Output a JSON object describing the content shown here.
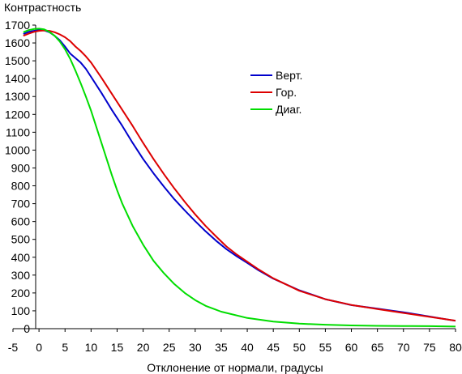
{
  "chart_data": {
    "type": "line",
    "title": "",
    "ylabel": "Контрастность",
    "xlabel": "Отклонение от нормали, градусы",
    "xlim": [
      -5,
      80
    ],
    "ylim": [
      0,
      1700
    ],
    "xticks": [
      "-5",
      "0",
      "5",
      "10",
      "15",
      "20",
      "25",
      "30",
      "35",
      "40",
      "45",
      "50",
      "55",
      "60",
      "65",
      "70",
      "75",
      "80"
    ],
    "yticks": [
      "0",
      "100",
      "200",
      "300",
      "400",
      "500",
      "600",
      "700",
      "800",
      "900",
      "1000",
      "1100",
      "1200",
      "1300",
      "1400",
      "1500",
      "1600",
      "1700"
    ],
    "grid": false,
    "legend_position": "upper-right (inside plot)",
    "series": [
      {
        "name": "Верт.",
        "color": "#0000cc",
        "x": [
          -3,
          -2,
          -1,
          0,
          1,
          2,
          3,
          4,
          5,
          6,
          7,
          8,
          9,
          10,
          12,
          14,
          16,
          18,
          20,
          22,
          24,
          26,
          28,
          30,
          32,
          34,
          36,
          38,
          40,
          42,
          45,
          50,
          55,
          60,
          65,
          70,
          75,
          80
        ],
        "y": [
          1650,
          1662,
          1668,
          1672,
          1670,
          1660,
          1640,
          1615,
          1580,
          1540,
          1515,
          1490,
          1455,
          1410,
          1320,
          1225,
          1135,
          1040,
          950,
          870,
          795,
          725,
          662,
          602,
          545,
          493,
          445,
          405,
          368,
          330,
          280,
          215,
          165,
          132,
          112,
          92,
          68,
          44
        ]
      },
      {
        "name": "Гор.",
        "color": "#dd0000",
        "x": [
          -3,
          -2,
          -1,
          0,
          1,
          2,
          3,
          4,
          5,
          6,
          7,
          8,
          9,
          10,
          12,
          14,
          16,
          18,
          20,
          22,
          24,
          26,
          28,
          30,
          32,
          34,
          36,
          38,
          40,
          42,
          45,
          50,
          55,
          60,
          65,
          70,
          75,
          80
        ],
        "y": [
          1640,
          1652,
          1662,
          1668,
          1670,
          1668,
          1660,
          1648,
          1632,
          1610,
          1580,
          1555,
          1525,
          1490,
          1405,
          1315,
          1225,
          1135,
          1040,
          950,
          865,
          785,
          710,
          640,
          575,
          517,
          460,
          415,
          375,
          335,
          282,
          212,
          165,
          133,
          110,
          88,
          66,
          45
        ]
      },
      {
        "name": "Диаг.",
        "color": "#00dd00",
        "x": [
          -3,
          -2,
          -1,
          0,
          1,
          2,
          3,
          4,
          5,
          6,
          7,
          8,
          9,
          10,
          11,
          12,
          13,
          14,
          15,
          16,
          18,
          20,
          22,
          24,
          26,
          28,
          30,
          32,
          35,
          40,
          45,
          50,
          55,
          60,
          65,
          70,
          75,
          80
        ],
        "y": [
          1660,
          1672,
          1678,
          1680,
          1676,
          1662,
          1640,
          1608,
          1565,
          1510,
          1445,
          1375,
          1300,
          1220,
          1130,
          1040,
          950,
          860,
          775,
          700,
          575,
          470,
          380,
          310,
          250,
          200,
          160,
          128,
          95,
          60,
          40,
          28,
          22,
          18,
          16,
          15,
          14,
          12
        ]
      }
    ]
  }
}
